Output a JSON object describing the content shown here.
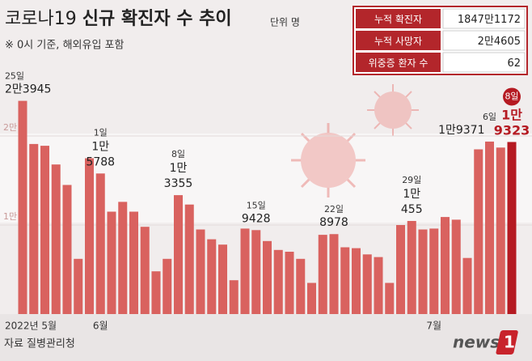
{
  "chart_data": {
    "type": "bar",
    "title_light": "코로나19",
    "title": "신규 확진자 수 추이",
    "unit": "단위 명",
    "note": "※ 0시 기준, 해외유입 포함",
    "source": "자료 질병관리청",
    "logo": [
      "news",
      "1"
    ],
    "stats": [
      [
        "누적 확진자",
        "1847만1172"
      ],
      [
        "누적 사망자",
        "2만4605"
      ],
      [
        "위중증 환자 수",
        "62"
      ]
    ],
    "categories": [
      "2022년 5월",
      null,
      null,
      null,
      null,
      null,
      null,
      "6월",
      null,
      null,
      null,
      null,
      null,
      null,
      null,
      null,
      null,
      null,
      null,
      null,
      null,
      null,
      null,
      null,
      null,
      null,
      null,
      null,
      null,
      null,
      null,
      null,
      null,
      null,
      null,
      null,
      null,
      "7월",
      null,
      null,
      null,
      null,
      null,
      null,
      null
    ],
    "day_labels": [
      "25일",
      null,
      null,
      null,
      null,
      null,
      null,
      "1일",
      null,
      null,
      null,
      null,
      null,
      null,
      "8일",
      null,
      null,
      null,
      null,
      null,
      null,
      "15일",
      null,
      null,
      null,
      null,
      null,
      null,
      "22일",
      null,
      null,
      null,
      null,
      null,
      null,
      "29일",
      null,
      null,
      null,
      null,
      null,
      null,
      "6일",
      null,
      "8일"
    ],
    "values": [
      23945,
      19100,
      18900,
      16800,
      14500,
      6200,
      17500,
      15788,
      11500,
      12600,
      11500,
      9800,
      4800,
      6200,
      13355,
      12300,
      9500,
      8400,
      7800,
      3800,
      9600,
      9428,
      8200,
      7200,
      7000,
      6200,
      3500,
      8900,
      8978,
      7500,
      7400,
      6700,
      6400,
      3500,
      10000,
      10455,
      9500,
      9600,
      10900,
      10600,
      6300,
      18500,
      19371,
      18700,
      19323
    ],
    "value_labels": [
      "2만3945",
      null,
      null,
      null,
      null,
      null,
      null,
      "1만5788",
      null,
      null,
      null,
      null,
      null,
      null,
      "1만3355",
      null,
      null,
      null,
      null,
      null,
      null,
      "9428",
      null,
      null,
      null,
      null,
      null,
      null,
      "8978",
      null,
      null,
      null,
      null,
      null,
      null,
      "1만455",
      null,
      null,
      null,
      null,
      null,
      null,
      "1만9371",
      null,
      "1만9323"
    ],
    "color": "#d9625f",
    "highlight_color": "#b51a22",
    "ylim": [
      0,
      26000
    ],
    "yticks": [
      {
        "value": 10000,
        "label": "1만"
      },
      {
        "value": 20000,
        "label": "2만"
      }
    ]
  }
}
